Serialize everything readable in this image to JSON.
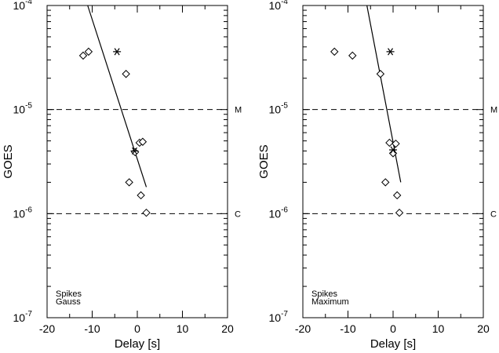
{
  "chart_data": [
    {
      "type": "scatter",
      "xlabel": "Delay [s]",
      "ylabel": "GOES",
      "xlim": [
        -20,
        20
      ],
      "ylim": [
        1e-07,
        0.0001
      ],
      "y_scale": "log",
      "x_ticks": [
        -20,
        -10,
        0,
        10,
        20
      ],
      "y_ticks": [
        {
          "mantissa": "10",
          "exponent": "-7",
          "value": 1e-07
        },
        {
          "mantissa": "10",
          "exponent": "-6",
          "value": 1e-06
        },
        {
          "mantissa": "10",
          "exponent": "-5",
          "value": 1e-05
        },
        {
          "mantissa": "10",
          "exponent": "-4",
          "value": 0.0001
        }
      ],
      "reference_lines": [
        {
          "label": "M",
          "y": 1e-05
        },
        {
          "label": "C",
          "y": 1e-06
        }
      ],
      "annotation": [
        "Spikes",
        "Gauss"
      ],
      "diamonds": [
        {
          "x": -12.0,
          "y": 3.3e-05
        },
        {
          "x": -10.8,
          "y": 3.6e-05
        },
        {
          "x": -2.5,
          "y": 2.2e-05
        },
        {
          "x": 0.5,
          "y": 4.8e-06
        },
        {
          "x": 1.2,
          "y": 4.9e-06
        },
        {
          "x": -0.5,
          "y": 3.9e-06
        },
        {
          "x": -1.8,
          "y": 2e-06
        },
        {
          "x": 0.8,
          "y": 1.5e-06
        },
        {
          "x": 2.0,
          "y": 1.02e-06
        }
      ],
      "stars": [
        {
          "x": -4.5,
          "y": 3.6e-05
        },
        {
          "x": -0.6,
          "y": 4e-06
        }
      ],
      "fit_line": [
        {
          "x": -11.0,
          "y": 0.0001
        },
        {
          "x": 2.0,
          "y": 1.8e-06
        }
      ],
      "line_color": "#000000"
    },
    {
      "type": "scatter",
      "xlabel": "Delay [s]",
      "ylabel": "GOES",
      "xlim": [
        -20,
        20
      ],
      "ylim": [
        1e-07,
        0.0001
      ],
      "y_scale": "log",
      "x_ticks": [
        -20,
        -10,
        0,
        10,
        20
      ],
      "y_ticks": [
        {
          "mantissa": "10",
          "exponent": "-7",
          "value": 1e-07
        },
        {
          "mantissa": "10",
          "exponent": "-6",
          "value": 1e-06
        },
        {
          "mantissa": "10",
          "exponent": "-5",
          "value": 1e-05
        },
        {
          "mantissa": "10",
          "exponent": "-4",
          "value": 0.0001
        }
      ],
      "reference_lines": [
        {
          "label": "M",
          "y": 1e-05
        },
        {
          "label": "C",
          "y": 1e-06
        }
      ],
      "annotation": [
        "Spikes",
        "Maximum"
      ],
      "diamonds": [
        {
          "x": -13.0,
          "y": 3.6e-05
        },
        {
          "x": -9.0,
          "y": 3.3e-05
        },
        {
          "x": -2.8,
          "y": 2.2e-05
        },
        {
          "x": -0.8,
          "y": 4.8e-06
        },
        {
          "x": 0.6,
          "y": 4.7e-06
        },
        {
          "x": 0.0,
          "y": 3.8e-06
        },
        {
          "x": -1.7,
          "y": 2e-06
        },
        {
          "x": 0.9,
          "y": 1.5e-06
        },
        {
          "x": 1.4,
          "y": 1.02e-06
        }
      ],
      "stars": [
        {
          "x": -0.6,
          "y": 3.6e-05
        },
        {
          "x": 0.0,
          "y": 4.1e-06
        }
      ],
      "fit_line": [
        {
          "x": -5.8,
          "y": 0.0001
        },
        {
          "x": 1.7,
          "y": 2e-06
        }
      ],
      "line_color": "#000000"
    }
  ]
}
